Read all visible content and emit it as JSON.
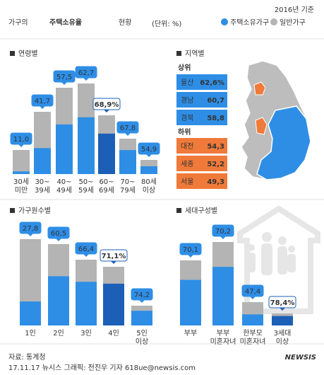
{
  "header": {
    "title_parts": [
      "가구의",
      "주택소유율",
      "현황"
    ],
    "unit": "(단위: %)",
    "basis": "2016년 기준"
  },
  "legend": [
    {
      "name": "주택소유가구",
      "color": "#2e8ee6"
    },
    {
      "name": "일반가구",
      "color": "#b4b4b4"
    }
  ],
  "chart_data": [
    {
      "type": "bar",
      "title": "연령별",
      "categories": [
        [
          "30세",
          "미만"
        ],
        [
          "30~",
          "39세"
        ],
        [
          "40~",
          "49세"
        ],
        [
          "50~",
          "59세"
        ],
        [
          "60~",
          "69세"
        ],
        [
          "70~",
          "79세"
        ],
        [
          "80세",
          "이상"
        ]
      ],
      "values": [
        11.0,
        41.7,
        57.5,
        62.7,
        68.9,
        67.8,
        54.9
      ],
      "value_labels": [
        "11,0",
        "41,7",
        "57,5",
        "62,7",
        "68,9%",
        "67,8",
        "54,9"
      ],
      "totals": [
        34,
        88,
        122,
        128,
        83,
        50,
        20
      ],
      "ylim": [
        0,
        130
      ],
      "highlight": 4,
      "highlight_color": "#1b5fb7"
    },
    {
      "type": "bar",
      "title": "가구원수별",
      "categories": [
        [
          "1인"
        ],
        [
          "2인"
        ],
        [
          "3인"
        ],
        [
          "4인"
        ],
        [
          "5인",
          "이상"
        ]
      ],
      "values": [
        27.8,
        60.5,
        66.4,
        71.1,
        74.2
      ],
      "value_labels": [
        "27,8",
        "60,5",
        "66,4",
        "71,1%",
        "74,2"
      ],
      "totals": [
        122,
        115,
        93,
        83,
        28
      ],
      "ylim": [
        0,
        130
      ],
      "highlight": 3,
      "highlight_color": "#1b5fb7"
    },
    {
      "type": "bar",
      "title": "세대구성별",
      "categories": [
        [
          "부부"
        ],
        [
          "부부",
          "미혼자녀"
        ],
        [
          "한부모",
          "미혼자녀"
        ],
        [
          "3세대",
          "이상"
        ]
      ],
      "values": [
        70.1,
        70.2,
        47.4,
        78.4
      ],
      "value_labels": [
        "70,1",
        "70,2",
        "47,4",
        "78,4%"
      ],
      "totals": [
        92,
        118,
        33,
        17
      ],
      "ylim": [
        0,
        130
      ],
      "highlight": 3,
      "highlight_color": "#1b5fb7"
    }
  ],
  "regions": {
    "title": "지역별",
    "top": {
      "label": "상위",
      "items": [
        {
          "name": "울산",
          "value": "62,6%"
        },
        {
          "name": "경남",
          "value": "60,7"
        },
        {
          "name": "경북",
          "value": "58,8"
        }
      ]
    },
    "bottom": {
      "label": "하위",
      "items": [
        {
          "name": "대전",
          "value": "54,3"
        },
        {
          "name": "세종",
          "value": "52,2"
        },
        {
          "name": "서울",
          "value": "49,3"
        }
      ]
    }
  },
  "footer": {
    "source": "자료: 통계청",
    "credit": "17.11.17 뉴시스 그래픽: 전진우 기자 618ue@newsis.com",
    "logo": "NEWSIS"
  }
}
